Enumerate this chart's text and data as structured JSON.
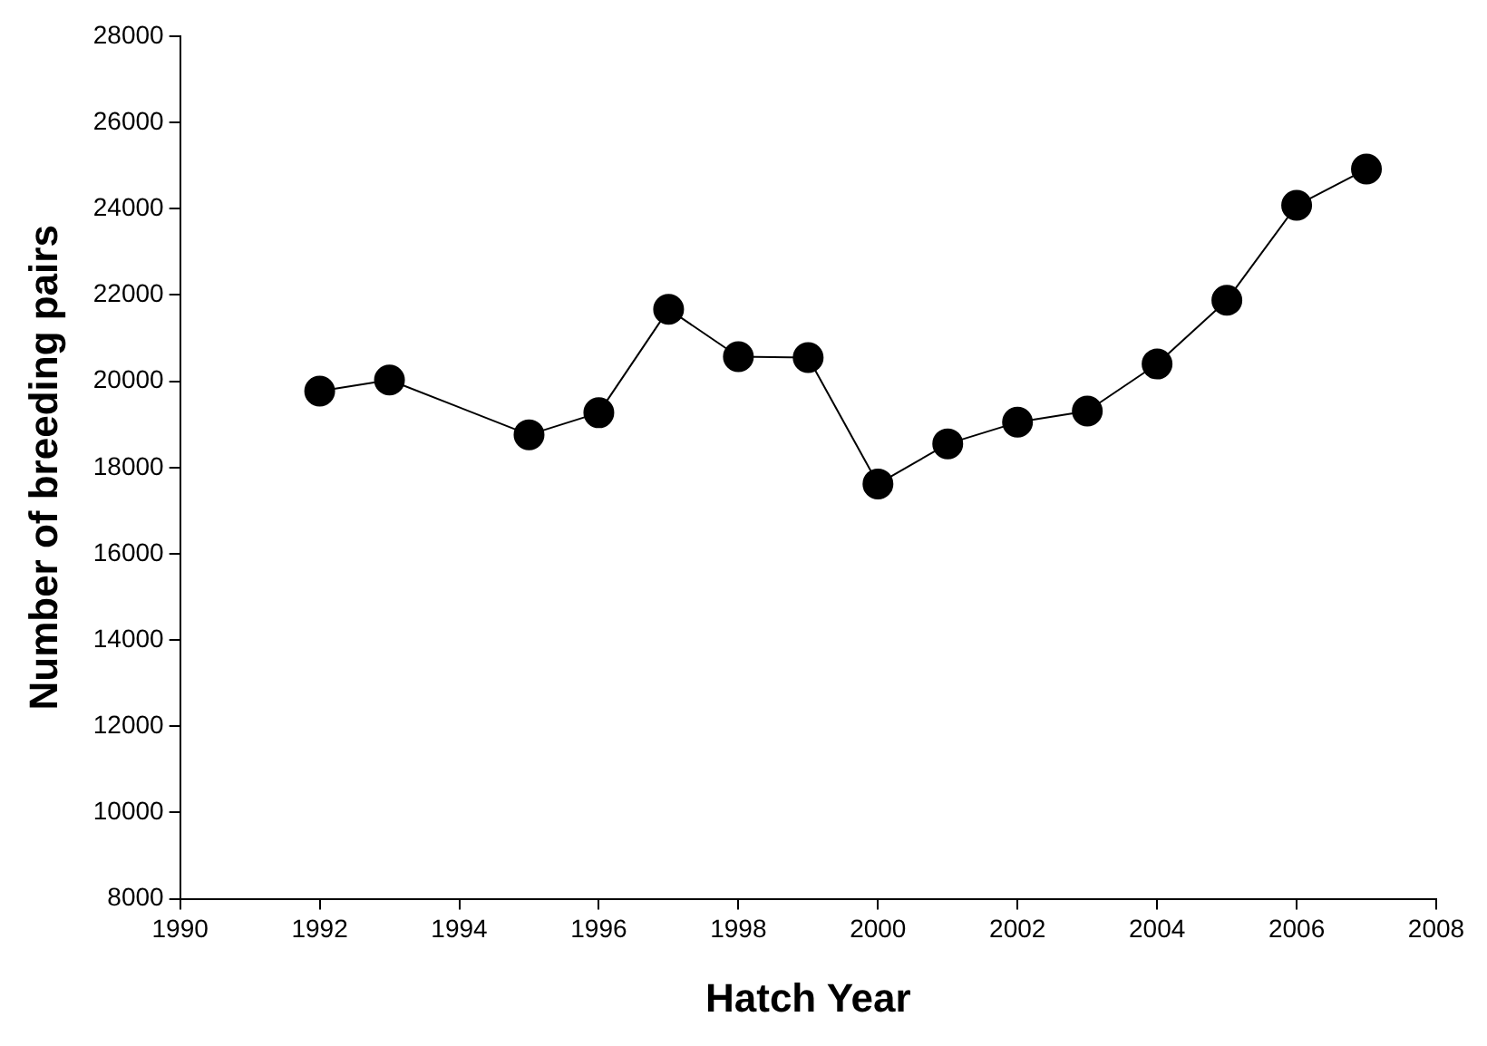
{
  "chart_data": {
    "type": "line",
    "xlabel": "Hatch Year",
    "ylabel": "Number of breeding pairs",
    "x": [
      1992,
      1993,
      1995,
      1996,
      1997,
      1998,
      1999,
      2000,
      2001,
      2002,
      2003,
      2004,
      2005,
      2006,
      2007
    ],
    "series": [
      {
        "color": "#000000",
        "values": [
          19770,
          20030,
          18760,
          19270,
          21670,
          20570,
          20550,
          17620,
          18550,
          19050,
          19310,
          20400,
          21880,
          24080,
          24920
        ]
      }
    ],
    "xlim": [
      1990,
      2008
    ],
    "xticks": [
      1990,
      1992,
      1994,
      1996,
      1998,
      2000,
      2002,
      2004,
      2006,
      2008
    ],
    "ylim": [
      8000,
      28000
    ],
    "yticks": [
      8000,
      10000,
      12000,
      14000,
      16000,
      18000,
      20000,
      22000,
      24000,
      26000,
      28000
    ],
    "grid": false,
    "legend": false,
    "marker": "circle",
    "line_style": "solid"
  }
}
